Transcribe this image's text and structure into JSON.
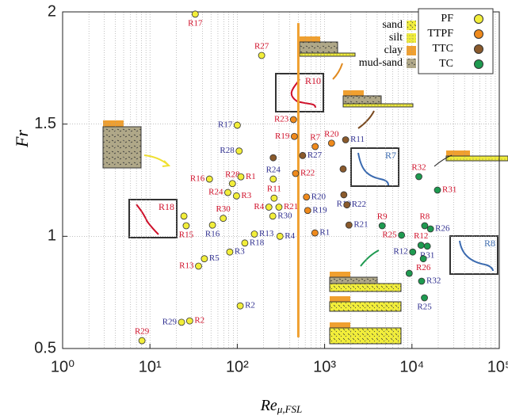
{
  "chart_data": {
    "type": "scatter",
    "x_label": {
      "main": "Re",
      "sub": "μ,FSL"
    },
    "y_label": "Fr",
    "xscale": "log",
    "xlim": [
      1,
      100000
    ],
    "xticks": [
      {
        "value": 1,
        "label": "10⁰"
      },
      {
        "value": 10,
        "label": "10¹"
      },
      {
        "value": 100,
        "label": "10²"
      },
      {
        "value": 1000,
        "label": "10³"
      },
      {
        "value": 10000,
        "label": "10⁴"
      },
      {
        "value": 100000,
        "label": "10⁵"
      }
    ],
    "ylim": [
      0.5,
      2
    ],
    "yticks": [
      0.5,
      1,
      1.5,
      2
    ],
    "grid": true,
    "legend": "upper right",
    "reference_line": {
      "x": 500,
      "y": [
        0.55,
        1.95
      ],
      "color": "#f0a030"
    },
    "pattern_legend": [
      "sand",
      "silt",
      "clay",
      "mud-sand"
    ],
    "insets": [
      "R10",
      "R7",
      "R18",
      "R8"
    ],
    "series": [
      {
        "name": "PF",
        "color": "#f2ee3a",
        "x": [
          33,
          190,
          100,
          105,
          48,
          88,
          110,
          78,
          98,
          258,
          264,
          230,
          300,
          255,
          69,
          52,
          26,
          24.5,
          157,
          308,
          122,
          82,
          42,
          36,
          108,
          28.5,
          23,
          8.1
        ],
        "values": [
          1.99,
          1.806,
          1.495,
          1.38,
          1.255,
          1.235,
          1.265,
          1.195,
          1.18,
          1.255,
          1.17,
          1.13,
          1.13,
          1.09,
          1.08,
          1.05,
          1.047,
          1.09,
          1.01,
          1.0,
          0.97,
          0.93,
          0.9,
          0.867,
          0.69,
          0.623,
          0.617,
          0.535
        ],
        "labels": [
          "R17",
          "R27",
          "R17",
          "R28",
          "R16",
          "R28",
          "R1",
          "R24",
          "R3",
          "R24",
          "R11",
          "R4",
          "R21",
          "R30",
          "R30",
          "R16",
          "R15",
          null,
          "R13",
          "R4",
          "R18",
          "R3",
          "R5",
          "R13",
          "R2",
          "R2",
          "R29",
          "R29"
        ],
        "label_colors": [
          "#d0102a",
          "#d0102a",
          "#303090",
          "#303090",
          "#d0102a",
          "#d0102a",
          "#d0102a",
          "#d0102a",
          "#d0102a",
          "#303090",
          "#d0102a",
          "#d0102a",
          "#d0102a",
          "#303090",
          "#d0102a",
          "#303090",
          "#d0102a",
          null,
          "#303090",
          "#303090",
          "#303090",
          "#303090",
          "#303090",
          "#d0102a",
          "#303090",
          "#d0102a",
          "#303090",
          "#d0102a"
        ]
      },
      {
        "name": "TTPF",
        "color": "#ef8a1c",
        "x": [
          440,
          450,
          780,
          1200,
          465,
          620,
          640,
          775
        ],
        "values": [
          1.52,
          1.445,
          1.4,
          1.415,
          1.28,
          1.175,
          1.115,
          1.015
        ],
        "labels": [
          "R23",
          "R19",
          "R7",
          "R20",
          "R22",
          "R20",
          "R19",
          "R1"
        ],
        "label_colors": [
          "#d0102a",
          "#d0102a",
          "#d0102a",
          "#d0102a",
          "#d0102a",
          "#303090",
          "#303090",
          "#303090"
        ]
      },
      {
        "name": "TTC",
        "color": "#8a5a2c",
        "x": [
          1740,
          560,
          258,
          1630,
          1660,
          1800,
          1900
        ],
        "values": [
          1.43,
          1.36,
          1.35,
          1.3,
          1.185,
          1.14,
          1.05
        ],
        "labels": [
          "R11",
          "R27",
          null,
          null,
          "R10",
          "R22",
          "R21"
        ],
        "label_colors": [
          "#303090",
          "#303090",
          null,
          null,
          "#303090",
          "#303090",
          "#303090"
        ]
      },
      {
        "name": "TC",
        "color": "#1e9a50",
        "x": [
          12000,
          19600,
          4560,
          7600,
          14000,
          16300,
          15000,
          10200,
          12700,
          13500,
          12900,
          13900,
          9300
        ],
        "values": [
          1.266,
          1.206,
          1.047,
          1.005,
          1.047,
          1.033,
          0.956,
          0.93,
          0.96,
          0.9,
          0.8,
          0.726,
          0.835
        ],
        "labels": [
          "R32",
          "R31",
          "R9",
          "R25",
          "R8",
          "R26",
          "R31",
          "R12",
          "R12",
          "R26",
          "R32",
          "R25",
          null
        ],
        "label_colors": [
          "#d0102a",
          "#d0102a",
          "#d0102a",
          "#d0102a",
          "#d0102a",
          "#303090",
          "#303090",
          "#303090",
          "#d0102a",
          "#d0102a",
          "#303090",
          "#303090",
          null
        ]
      }
    ]
  }
}
